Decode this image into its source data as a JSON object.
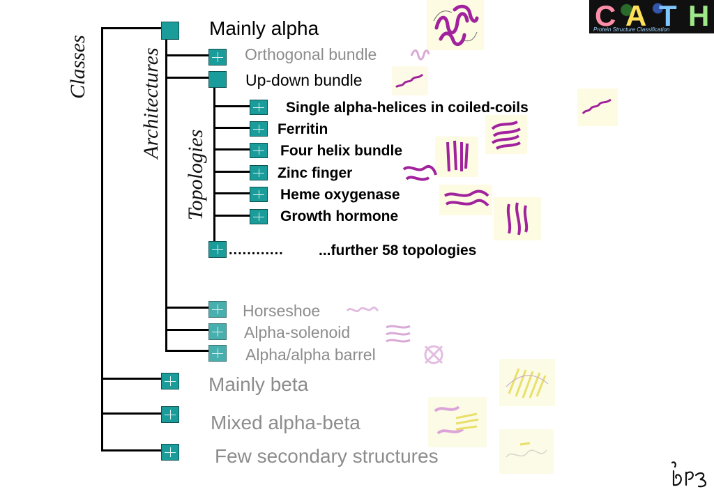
{
  "vertical_labels": {
    "classes": "Classes",
    "architectures": "Architectures",
    "topologies": "Topologies"
  },
  "logo": {
    "letters": [
      "C",
      "A",
      "T",
      "H"
    ],
    "subtitle": "Protein Structure Classification"
  },
  "tree": {
    "classes": [
      {
        "label": "Mainly alpha",
        "expanded": true
      },
      {
        "label": "Mainly beta",
        "expanded": false
      },
      {
        "label": "Mixed alpha-beta",
        "expanded": false
      },
      {
        "label": "Few secondary structures",
        "expanded": false
      }
    ],
    "architectures": [
      {
        "label": "Orthogonal bundle",
        "expanded": false
      },
      {
        "label": "Up-down bundle",
        "expanded": true
      },
      {
        "label": "Horseshoe",
        "expanded": false
      },
      {
        "label": "Alpha-solenoid",
        "expanded": false
      },
      {
        "label": "Alpha/alpha barrel",
        "expanded": false
      }
    ],
    "topologies": [
      {
        "label": "Single alpha-helices in coiled-coils"
      },
      {
        "label": "Ferritin"
      },
      {
        "label": "Four helix bundle"
      },
      {
        "label": "Zinc finger"
      },
      {
        "label": "Heme oxygenase"
      },
      {
        "label": "Growth hormone"
      }
    ],
    "more_topologies": {
      "dots": "............",
      "label": "...further 58 topologies"
    }
  },
  "colors": {
    "node_fill": "#1a9c9a",
    "node_border": "#0d4f4f",
    "active_label": "#000000",
    "inactive_label": "#8c8c8c",
    "protein_magenta": "#a0229c",
    "protein_faded": "#d9a8d6",
    "beta_yellow": "#e8e06a"
  },
  "icons": [
    "expand-plus-icon",
    "protein-structure-thumbnail",
    "cath-logo",
    "ibs-logo"
  ]
}
